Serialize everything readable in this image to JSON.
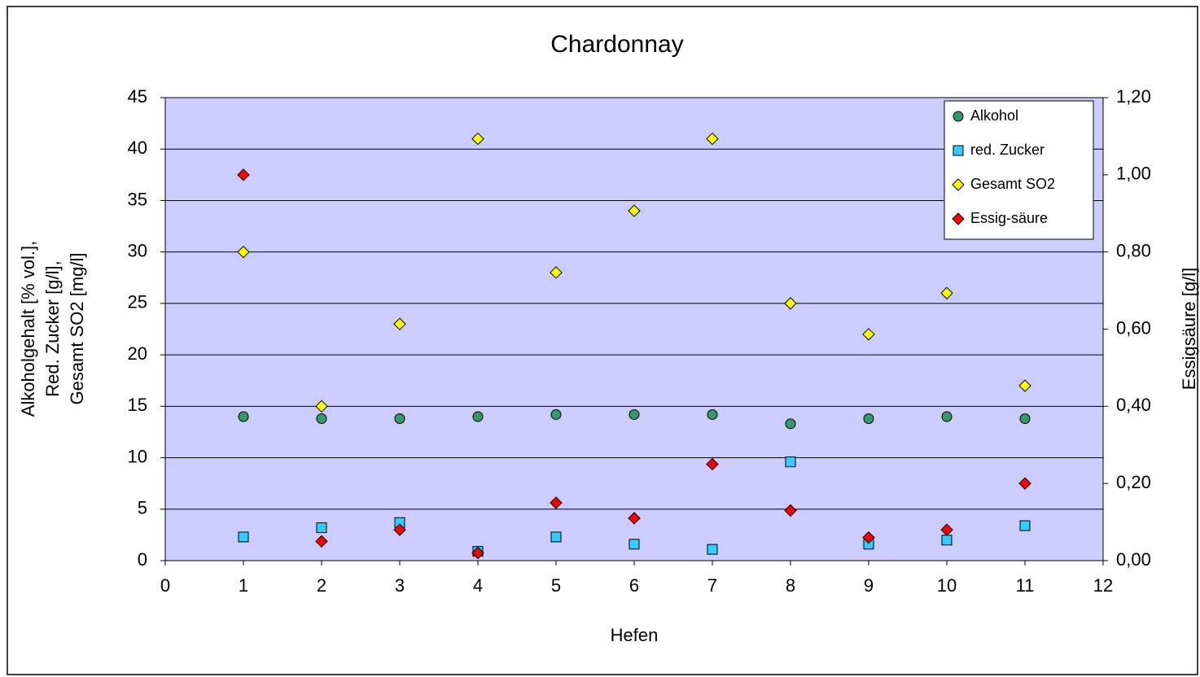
{
  "chart_data": {
    "type": "scatter",
    "title": "Chardonnay",
    "xlabel": "Hefen",
    "ylabel": [
      "Alkoholgehalt [% vol.],",
      "Red. Zucker [g/l],",
      "Gesamt SO2 [mg/l]"
    ],
    "y2label": "Essigsäure [g/l]",
    "x": [
      1,
      2,
      3,
      4,
      5,
      6,
      7,
      8,
      9,
      10,
      11
    ],
    "xlim": [
      0,
      12
    ],
    "xticks": [
      0,
      1,
      2,
      3,
      4,
      5,
      6,
      7,
      8,
      9,
      10,
      11,
      12
    ],
    "ylim": [
      0,
      45
    ],
    "yticks": [
      0,
      5,
      10,
      15,
      20,
      25,
      30,
      35,
      40,
      45
    ],
    "y2lim": [
      0,
      1.2
    ],
    "y2ticks": [
      {
        "value": 0,
        "label": "0,00"
      },
      {
        "value": 0.2,
        "label": "0,20"
      },
      {
        "value": 0.4,
        "label": "0,40"
      },
      {
        "value": 0.6,
        "label": "0,60"
      },
      {
        "value": 0.8,
        "label": "0,80"
      },
      {
        "value": 1.0,
        "label": "1,00"
      },
      {
        "value": 1.2,
        "label": "1,20"
      }
    ],
    "grid": true,
    "legend": "upper right",
    "series": [
      {
        "name": "Alkohol",
        "color": "#339966",
        "marker": "circle",
        "values": [
          14,
          13.8,
          13.8,
          14,
          14.2,
          14.2,
          14.2,
          13.3,
          13.8,
          14,
          13.8
        ]
      },
      {
        "name": "red. Zucker",
        "color": "#33ccff",
        "marker": "square",
        "values": [
          2.3,
          3.2,
          3.7,
          0.9,
          2.3,
          1.6,
          1.1,
          9.6,
          1.6,
          2.0,
          3.4
        ]
      },
      {
        "name": "Gesamt SO2",
        "color": "#ffff00",
        "marker": "diamond",
        "values": [
          30,
          15,
          23,
          41,
          28,
          34,
          41,
          25,
          22,
          26,
          17
        ]
      },
      {
        "name": "Essig-säure",
        "color": "#ff0000",
        "marker": "diamond",
        "axis": "y2",
        "values": [
          1.0,
          0.05,
          0.08,
          0.02,
          0.15,
          0.11,
          0.25,
          0.13,
          0.06,
          0.08,
          0.2
        ]
      }
    ]
  }
}
